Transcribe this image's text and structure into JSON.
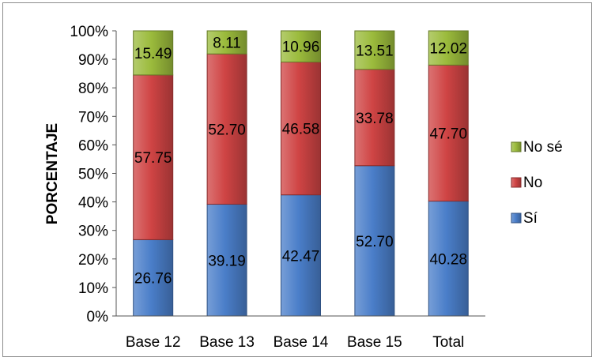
{
  "chart_data": {
    "type": "bar",
    "stacked": true,
    "categories": [
      "Base 12",
      "Base 13",
      "Base 14",
      "Base 15",
      "Total"
    ],
    "series": [
      {
        "name": "Sí",
        "values": [
          26.76,
          39.19,
          42.47,
          52.7,
          40.28
        ],
        "labels": [
          "26.76",
          "39.19",
          "42.47",
          "52.70",
          "40.28"
        ],
        "color": "#4a7ec9"
      },
      {
        "name": "No",
        "values": [
          57.75,
          52.7,
          46.58,
          33.78,
          47.7
        ],
        "labels": [
          "57.75",
          "52.70",
          "46.58",
          "33.78",
          "47.70"
        ],
        "color": "#cf4444"
      },
      {
        "name": "No sé",
        "values": [
          15.49,
          8.11,
          10.96,
          13.51,
          12.02
        ],
        "labels": [
          "15.49",
          "8.11",
          "10.96",
          "13.51",
          "12.02"
        ],
        "color": "#9bbb3c"
      }
    ],
    "ylabel": "PORCENTAJE",
    "ylim": [
      0,
      100
    ],
    "yticks": [
      "0%",
      "10%",
      "20%",
      "30%",
      "40%",
      "50%",
      "60%",
      "70%",
      "80%",
      "90%",
      "100%"
    ],
    "grid": false,
    "legend_position": "right",
    "legend_order": [
      "No sé",
      "No",
      "Sí"
    ]
  }
}
